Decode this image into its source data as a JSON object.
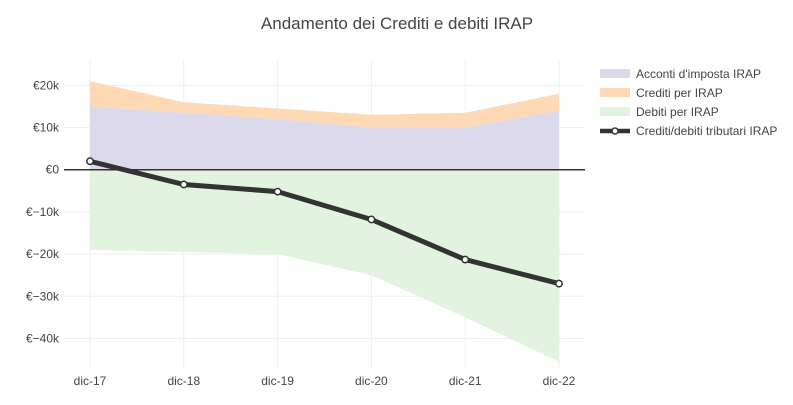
{
  "chart_data": {
    "type": "area",
    "title": "Andamento dei Crediti e debiti IRAP",
    "xlabel": "",
    "ylabel": "",
    "categories": [
      "dic-17",
      "dic-18",
      "dic-19",
      "dic-20",
      "dic-21",
      "dic-22"
    ],
    "y_ticks": [
      {
        "value": 20000,
        "label": "€20k"
      },
      {
        "value": 10000,
        "label": "€10k"
      },
      {
        "value": 0,
        "label": "€0"
      },
      {
        "value": -10000,
        "label": "€−10k"
      },
      {
        "value": -20000,
        "label": "€−20k"
      },
      {
        "value": -30000,
        "label": "€−30k"
      },
      {
        "value": -40000,
        "label": "€−40k"
      }
    ],
    "ylim": [
      -47000,
      26000
    ],
    "grid": true,
    "legend_position": "right",
    "stacked_areas": [
      {
        "name": "Acconti d'imposta IRAP",
        "color": "#dcd9ec",
        "base": "zero",
        "values": [
          15000,
          13500,
          12000,
          10000,
          10000,
          14000
        ]
      },
      {
        "name": "Crediti per IRAP",
        "color": "#fdd9b5",
        "base": "previous",
        "values": [
          6000,
          2500,
          2500,
          3000,
          3500,
          4000
        ]
      },
      {
        "name": "Debiti per IRAP",
        "color": "#e2f3e0",
        "base": "zero",
        "values": [
          -19000,
          -19500,
          -20000,
          -25000,
          -35000,
          -45500
        ]
      }
    ],
    "line": {
      "name": "Crediti/debiti tributari IRAP",
      "color": "#333333",
      "values": [
        2000,
        -3500,
        -5200,
        -11800,
        -21300,
        -27000
      ]
    }
  }
}
